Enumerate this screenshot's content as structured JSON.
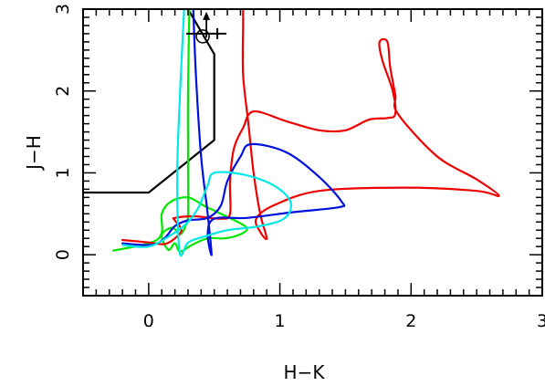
{
  "chart_data": {
    "type": "line",
    "title": "",
    "xlabel": "H−K",
    "ylabel": "J−H",
    "xlim": [
      -0.5,
      3.0
    ],
    "ylim": [
      -0.5,
      3.0
    ],
    "x_ticks": [
      {
        "value": 0,
        "label": "0"
      },
      {
        "value": 1,
        "label": "1"
      },
      {
        "value": 2,
        "label": "2"
      },
      {
        "value": 3,
        "label": "3"
      }
    ],
    "y_ticks": [
      {
        "value": 0,
        "label": "0"
      },
      {
        "value": 1,
        "label": "1"
      },
      {
        "value": 2,
        "label": "2"
      },
      {
        "value": 3,
        "label": "3"
      }
    ],
    "grid": false,
    "legend": "none",
    "series": [
      {
        "color": "#000000",
        "points": [
          [
            -0.5,
            0.76
          ],
          [
            0.0,
            0.76
          ],
          [
            0.5,
            1.4
          ],
          [
            0.5,
            2.45
          ],
          [
            0.3,
            3.0
          ]
        ]
      },
      {
        "color": "#00e800",
        "points": [
          [
            -0.27,
            0.05
          ],
          [
            0.02,
            0.15
          ],
          [
            0.1,
            0.27
          ],
          [
            0.1,
            0.5
          ],
          [
            0.17,
            0.65
          ],
          [
            0.3,
            0.7
          ],
          [
            0.42,
            0.6
          ],
          [
            0.55,
            0.5
          ],
          [
            0.68,
            0.4
          ],
          [
            0.75,
            0.32
          ],
          [
            0.7,
            0.25
          ],
          [
            0.58,
            0.2
          ],
          [
            0.45,
            0.2
          ],
          [
            0.33,
            0.12
          ],
          [
            0.24,
            0.04
          ],
          [
            0.2,
            0.14
          ],
          [
            0.15,
            0.06
          ],
          [
            0.1,
            0.24
          ],
          [
            0.18,
            0.33
          ],
          [
            0.24,
            0.25
          ],
          [
            0.28,
            0.35
          ],
          [
            0.3,
            0.5
          ],
          [
            0.3,
            1.2
          ],
          [
            0.3,
            2.0
          ],
          [
            0.31,
            3.0
          ]
        ]
      },
      {
        "color": "#ee0000",
        "points": [
          [
            -0.2,
            0.18
          ],
          [
            0.0,
            0.15
          ],
          [
            0.12,
            0.13
          ],
          [
            0.2,
            0.2
          ],
          [
            0.25,
            0.3
          ],
          [
            0.2,
            0.42
          ],
          [
            0.2,
            0.45
          ],
          [
            0.35,
            0.47
          ],
          [
            0.55,
            0.44
          ],
          [
            0.62,
            0.5
          ],
          [
            0.62,
            0.9
          ],
          [
            0.65,
            1.3
          ],
          [
            0.72,
            1.55
          ],
          [
            0.8,
            1.75
          ],
          [
            1.05,
            1.63
          ],
          [
            1.3,
            1.52
          ],
          [
            1.5,
            1.52
          ],
          [
            1.68,
            1.65
          ],
          [
            1.82,
            1.67
          ],
          [
            1.88,
            1.72
          ],
          [
            1.86,
            2.0
          ],
          [
            1.78,
            2.38
          ],
          [
            1.76,
            2.6
          ],
          [
            1.82,
            2.6
          ],
          [
            1.84,
            2.3
          ],
          [
            1.88,
            1.95
          ],
          [
            1.9,
            1.72
          ],
          [
            2.2,
            1.2
          ],
          [
            2.5,
            0.92
          ],
          [
            2.67,
            0.72
          ],
          [
            2.5,
            0.78
          ],
          [
            1.96,
            0.82
          ],
          [
            1.3,
            0.78
          ],
          [
            0.95,
            0.6
          ],
          [
            0.82,
            0.44
          ],
          [
            0.85,
            0.28
          ],
          [
            0.9,
            0.2
          ],
          [
            0.85,
            0.5
          ],
          [
            0.8,
            1.0
          ],
          [
            0.76,
            1.6
          ],
          [
            0.72,
            2.2
          ],
          [
            0.72,
            2.8
          ],
          [
            0.72,
            3.0
          ]
        ]
      },
      {
        "color": "#0010dd",
        "points": [
          [
            -0.2,
            0.14
          ],
          [
            0.02,
            0.12
          ],
          [
            0.12,
            0.2
          ],
          [
            0.2,
            0.35
          ],
          [
            0.3,
            0.42
          ],
          [
            0.45,
            0.45
          ],
          [
            0.55,
            0.6
          ],
          [
            0.6,
            0.9
          ],
          [
            0.7,
            1.2
          ],
          [
            0.78,
            1.35
          ],
          [
            1.05,
            1.25
          ],
          [
            1.3,
            0.95
          ],
          [
            1.47,
            0.65
          ],
          [
            1.45,
            0.58
          ],
          [
            1.1,
            0.52
          ],
          [
            0.75,
            0.45
          ],
          [
            0.5,
            0.44
          ],
          [
            0.45,
            0.25
          ],
          [
            0.48,
            0.0
          ],
          [
            0.45,
            0.5
          ],
          [
            0.4,
            1.2
          ],
          [
            0.36,
            2.2
          ],
          [
            0.34,
            3.0
          ]
        ]
      },
      {
        "color": "#00e8e8",
        "points": [
          [
            -0.2,
            0.12
          ],
          [
            0.0,
            0.1
          ],
          [
            0.18,
            0.25
          ],
          [
            0.3,
            0.4
          ],
          [
            0.38,
            0.58
          ],
          [
            0.45,
            0.85
          ],
          [
            0.5,
            1.0
          ],
          [
            0.72,
            0.98
          ],
          [
            0.95,
            0.85
          ],
          [
            1.08,
            0.65
          ],
          [
            1.04,
            0.45
          ],
          [
            0.85,
            0.35
          ],
          [
            0.6,
            0.3
          ],
          [
            0.42,
            0.22
          ],
          [
            0.3,
            0.15
          ],
          [
            0.24,
            0.0
          ],
          [
            0.22,
            0.5
          ],
          [
            0.22,
            1.2
          ],
          [
            0.24,
            2.0
          ],
          [
            0.27,
            3.0
          ]
        ]
      }
    ],
    "marker": {
      "x": 0.44,
      "y": 2.7,
      "symbol": "circle-with-arrow-up"
    }
  }
}
